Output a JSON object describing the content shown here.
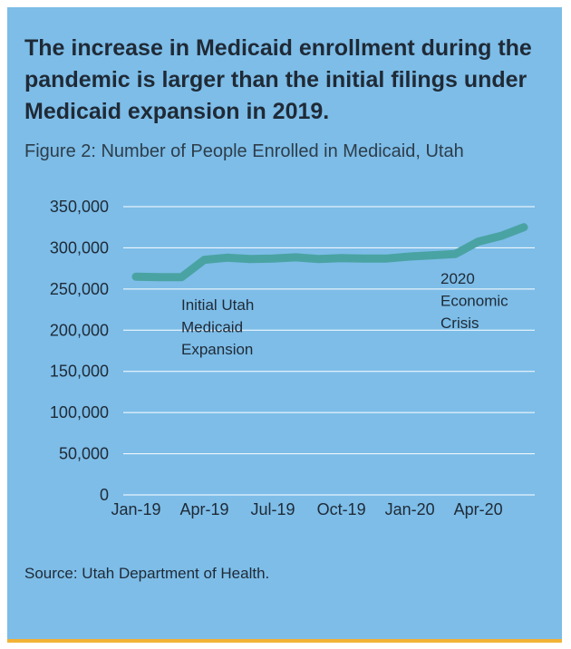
{
  "headline": "The increase in Medicaid enrollment during the pandemic is larger than the initial filings under Medicaid expansion in 2019.",
  "source": "Source: Utah Department of Health.",
  "colors": {
    "background": "#7dbde8",
    "line": "#4aa3a3",
    "gridline": "#ffffff",
    "bottom_rule": "#f2b236",
    "text": "#1f2a36"
  },
  "chart_data": {
    "type": "line",
    "title": "Figure 2: Number of People Enrolled in Medicaid, Utah",
    "xlabel": "",
    "ylabel": "",
    "ylim": [
      0,
      350000
    ],
    "yticks": [
      0,
      50000,
      100000,
      150000,
      200000,
      250000,
      300000,
      350000
    ],
    "ytick_labels": [
      "0",
      "50,000",
      "100,000",
      "150,000",
      "200,000",
      "250,000",
      "300,000",
      "350,000"
    ],
    "xtick_labels": [
      "Jan-19",
      "Apr-19",
      "Jul-19",
      "Oct-19",
      "Jan-20",
      "Apr-20"
    ],
    "x": [
      "Jan-19",
      "Feb-19",
      "Mar-19",
      "Apr-19",
      "May-19",
      "Jun-19",
      "Jul-19",
      "Aug-19",
      "Sep-19",
      "Oct-19",
      "Nov-19",
      "Dec-19",
      "Jan-20",
      "Feb-20",
      "Mar-20",
      "Apr-20",
      "May-20",
      "Jun-20"
    ],
    "series": [
      {
        "name": "Medicaid enrollment",
        "values": [
          265000,
          264500,
          264500,
          285500,
          288000,
          286500,
          287000,
          288500,
          286500,
          287500,
          287000,
          287000,
          289500,
          291000,
          292500,
          307500,
          314500,
          325000
        ]
      }
    ],
    "annotations": [
      {
        "lines": [
          "Initial Utah",
          "Medicaid",
          "Expansion"
        ],
        "near": "Apr-19"
      },
      {
        "lines": [
          "2020",
          "Economic",
          "Crisis"
        ],
        "near": "Apr-20"
      }
    ],
    "grid": true,
    "legend": "none"
  }
}
